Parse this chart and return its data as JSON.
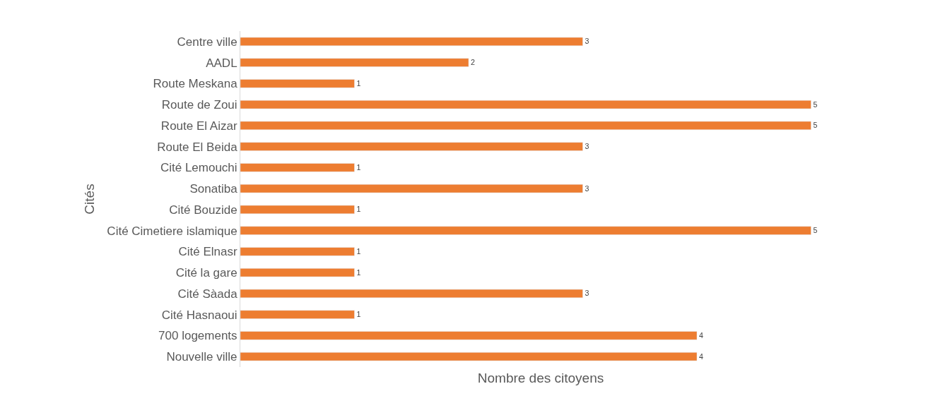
{
  "chart_data": {
    "type": "bar",
    "orientation": "horizontal",
    "xlabel": "Nombre des citoyens",
    "ylabel": "Cités",
    "categories": [
      "Centre ville",
      "AADL",
      "Route Meskana",
      "Route de Zoui",
      "Route El Aizar",
      "Route El Beida",
      "Cité Lemouchi",
      "Sonatiba",
      "Cité Bouzide",
      "Cité Cimetiere islamique",
      "Cité Elnasr",
      "Cité la gare",
      "Cité Sàada",
      "Cité Hasnaoui",
      "700 logements",
      "Nouvelle ville"
    ],
    "values": [
      3,
      2,
      1,
      5,
      5,
      3,
      1,
      3,
      1,
      5,
      1,
      1,
      3,
      1,
      4,
      4
    ],
    "color": "#ed7d31",
    "data_labels": true
  }
}
